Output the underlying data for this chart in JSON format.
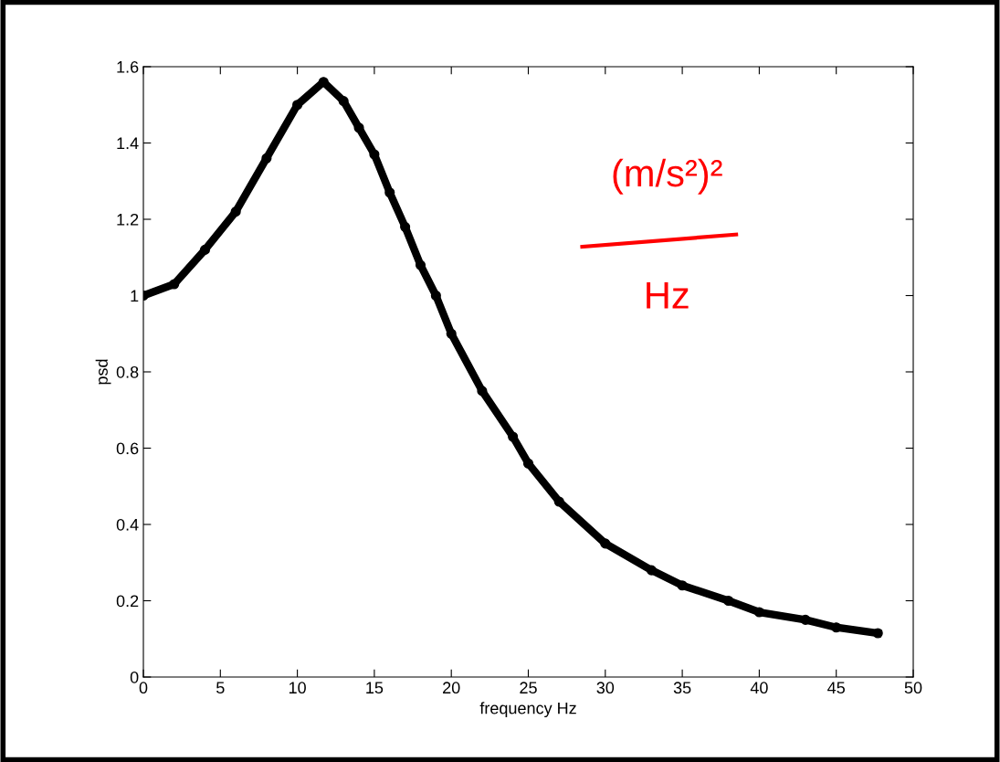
{
  "chart_data": {
    "type": "line",
    "xlabel": "frequency Hz",
    "ylabel": "psd",
    "x": [
      0,
      2,
      4,
      6,
      8,
      10,
      11.7,
      13,
      14,
      15,
      16,
      17,
      18,
      19,
      20,
      22,
      24,
      25,
      27,
      30,
      33,
      35,
      38,
      40,
      43,
      45,
      47.7
    ],
    "values": [
      1.0,
      1.03,
      1.12,
      1.22,
      1.36,
      1.5,
      1.56,
      1.51,
      1.44,
      1.37,
      1.27,
      1.18,
      1.08,
      1.0,
      0.9,
      0.75,
      0.63,
      0.56,
      0.46,
      0.35,
      0.28,
      0.24,
      0.2,
      0.17,
      0.15,
      0.13,
      0.115
    ],
    "color": "#000000",
    "marker": "circle",
    "line_style": "solid",
    "xlim": [
      0,
      50
    ],
    "xticks": [
      0,
      5,
      10,
      15,
      20,
      25,
      30,
      35,
      40,
      45,
      50
    ],
    "ylim": [
      0,
      1.6
    ],
    "yticks": [
      0,
      0.2,
      0.4,
      0.6,
      0.8,
      1,
      1.2,
      1.4,
      1.6
    ],
    "grid": false,
    "annotations": [
      "(m/s²)²",
      "Hz"
    ]
  }
}
